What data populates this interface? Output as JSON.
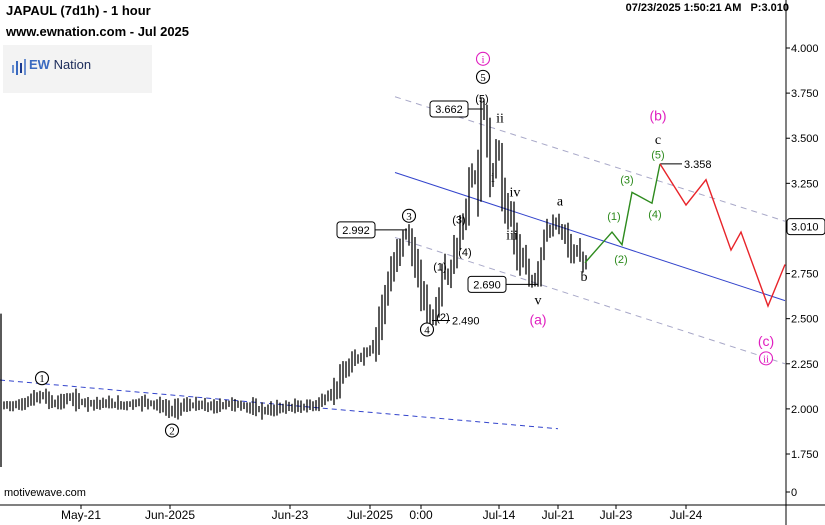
{
  "header": {
    "symbol": "JAPAUL (7d1h) - 1 hour",
    "website": "www.ewnation.com  - Jul 2025",
    "timestamp": "07/23/2025 1:50:21 AM",
    "price_readout": "P:3.010"
  },
  "logo": {
    "prefix": "EW",
    "suffix": " Nation"
  },
  "footer": {
    "credit": "motivewave.com"
  },
  "colors": {
    "candles": "#000000",
    "trend_line": "#3344cc",
    "channel": "#a8a8c8",
    "projection_up": "#2e8b1e",
    "projection_down": "#e8242a",
    "magenta": "#e020c0",
    "price_box": "#000000"
  },
  "chart_data": {
    "type": "bar",
    "title": "JAPAUL (7d1h) - 1 hour",
    "y_axis": {
      "ylim": [
        0,
        4.05
      ],
      "ticks": [
        "4.000",
        "3.750",
        "3.500",
        "3.250",
        "3.000",
        "2.750",
        "2.500",
        "2.250",
        "2.000",
        "1.750",
        "0"
      ],
      "current_price": "3.010"
    },
    "x_axis": {
      "labels": [
        "May-21",
        "Jun-2025",
        "Jun-23",
        "Jul-2025",
        "0:00",
        "Jul-14",
        "Jul-21",
        "Jul-23",
        "Jul-24"
      ]
    },
    "price_path": [
      [
        0,
        2.02
      ],
      [
        20,
        2.02
      ],
      [
        35,
        2.06
      ],
      [
        45,
        2.07
      ],
      [
        55,
        2.03
      ],
      [
        70,
        2.06
      ],
      [
        80,
        2.04
      ],
      [
        95,
        2.03
      ],
      [
        110,
        2.03
      ],
      [
        125,
        2.02
      ],
      [
        145,
        2.04
      ],
      [
        160,
        2.02
      ],
      [
        172,
        1.99
      ],
      [
        185,
        2.02
      ],
      [
        200,
        2.02
      ],
      [
        215,
        2.01
      ],
      [
        230,
        2.03
      ],
      [
        250,
        2.01
      ],
      [
        265,
        1.99
      ],
      [
        285,
        2.01
      ],
      [
        300,
        2.01
      ],
      [
        315,
        2.02
      ],
      [
        325,
        2.05
      ],
      [
        335,
        2.1
      ],
      [
        345,
        2.2
      ],
      [
        355,
        2.27
      ],
      [
        365,
        2.3
      ],
      [
        375,
        2.35
      ],
      [
        385,
        2.6
      ],
      [
        395,
        2.8
      ],
      [
        407,
        2.992
      ],
      [
        412,
        2.9
      ],
      [
        418,
        2.75
      ],
      [
        423,
        2.65
      ],
      [
        428,
        2.55
      ],
      [
        432,
        2.49
      ],
      [
        436,
        2.55
      ],
      [
        440,
        2.6
      ],
      [
        445,
        2.78
      ],
      [
        450,
        2.72
      ],
      [
        455,
        2.85
      ],
      [
        460,
        2.95
      ],
      [
        467,
        3.1
      ],
      [
        472,
        3.3
      ],
      [
        478,
        3.25
      ],
      [
        483,
        3.662
      ],
      [
        486,
        3.6
      ],
      [
        489,
        3.45
      ],
      [
        493,
        3.28
      ],
      [
        497,
        3.4
      ],
      [
        500,
        3.45
      ],
      [
        504,
        3.2
      ],
      [
        508,
        3.1
      ],
      [
        512,
        3.08
      ],
      [
        516,
        2.95
      ],
      [
        520,
        2.85
      ],
      [
        526,
        2.8
      ],
      [
        533,
        2.69
      ],
      [
        540,
        2.78
      ],
      [
        546,
        2.98
      ],
      [
        552,
        3.0
      ],
      [
        558,
        3.03
      ],
      [
        563,
        2.97
      ],
      [
        568,
        2.94
      ],
      [
        573,
        2.85
      ],
      [
        578,
        2.88
      ],
      [
        583,
        2.82
      ],
      [
        588,
        2.8
      ]
    ],
    "price_labels": [
      {
        "text": "3.662",
        "value": 3.662
      },
      {
        "text": "2.992",
        "value": 2.992
      },
      {
        "text": "2.690",
        "value": 2.69
      },
      {
        "text": "2.490",
        "value": 2.49
      },
      {
        "text": "3.358",
        "value": 3.358
      }
    ],
    "trend_lines": [
      {
        "name": "wave-2-trendline",
        "style": "dashed",
        "from": [
          0,
          2.16
        ],
        "to": [
          558,
          1.89
        ]
      },
      {
        "name": "channel-midline",
        "style": "solid",
        "from": [
          395,
          3.31
        ],
        "to": [
          785,
          2.6
        ]
      },
      {
        "name": "channel-upper",
        "style": "dashed",
        "from": [
          395,
          3.73
        ],
        "to": [
          785,
          3.04
        ]
      },
      {
        "name": "channel-lower",
        "style": "dashed",
        "from": [
          395,
          2.95
        ],
        "to": [
          785,
          2.25
        ]
      }
    ],
    "projection_up": [
      [
        585,
        2.81
      ],
      [
        612,
        2.98
      ],
      [
        622,
        2.91
      ],
      [
        632,
        3.2
      ],
      [
        652,
        3.14
      ],
      [
        660,
        3.358
      ]
    ],
    "projection_down": [
      [
        660,
        3.358
      ],
      [
        686,
        3.13
      ],
      [
        706,
        3.27
      ],
      [
        731,
        2.88
      ],
      [
        741,
        2.98
      ],
      [
        768,
        2.57
      ],
      [
        785,
        2.8
      ]
    ],
    "wave_labels": [
      {
        "text": "1",
        "style": "circled",
        "color": "black",
        "at": [
          42,
          2.17
        ]
      },
      {
        "text": "2",
        "style": "circled",
        "color": "black",
        "at": [
          172,
          1.88
        ]
      },
      {
        "text": "3",
        "style": "circled",
        "color": "black",
        "at": [
          409,
          3.07
        ]
      },
      {
        "text": "4",
        "style": "circled",
        "color": "black",
        "at": [
          427,
          2.44
        ]
      },
      {
        "text": "5",
        "style": "circled",
        "color": "black",
        "at": [
          483,
          3.84
        ]
      },
      {
        "text": "i",
        "style": "circled",
        "color": "magenta",
        "at": [
          483,
          3.94
        ]
      },
      {
        "text": "(5)",
        "style": "plain",
        "color": "black",
        "at": [
          482,
          3.72
        ]
      },
      {
        "text": "(1)",
        "style": "plain",
        "color": "black",
        "at": [
          440,
          2.79
        ]
      },
      {
        "text": "(2)",
        "style": "plain",
        "color": "black",
        "at": [
          443,
          2.51
        ]
      },
      {
        "text": "(3)",
        "style": "plain",
        "color": "black",
        "at": [
          459,
          3.05
        ]
      },
      {
        "text": "(4)",
        "style": "plain",
        "color": "black",
        "at": [
          465,
          2.87
        ]
      },
      {
        "text": "ii",
        "style": "plain",
        "color": "black",
        "at": [
          500,
          3.61
        ]
      },
      {
        "text": "i",
        "style": "plain",
        "color": "black",
        "at": [
          493,
          3.28
        ]
      },
      {
        "text": "iv",
        "style": "plain",
        "color": "black",
        "at": [
          515,
          3.2
        ]
      },
      {
        "text": "iii",
        "style": "plain",
        "color": "black",
        "at": [
          512,
          2.96
        ]
      },
      {
        "text": "v",
        "style": "plain",
        "color": "black",
        "at": [
          538,
          2.6
        ]
      },
      {
        "text": "a",
        "style": "plain",
        "color": "black",
        "at": [
          560,
          3.15
        ]
      },
      {
        "text": "b",
        "style": "plain",
        "color": "black",
        "at": [
          584,
          2.73
        ]
      },
      {
        "text": "c",
        "style": "plain",
        "color": "black",
        "at": [
          658,
          3.49
        ]
      },
      {
        "text": "(a)",
        "style": "plain",
        "color": "magenta",
        "at": [
          538,
          2.49
        ]
      },
      {
        "text": "(b)",
        "style": "plain",
        "color": "magenta",
        "at": [
          658,
          3.62
        ]
      },
      {
        "text": "(c)",
        "style": "plain",
        "color": "magenta",
        "at": [
          766,
          2.37
        ]
      },
      {
        "text": "ii",
        "style": "circled",
        "color": "magenta",
        "at": [
          766,
          2.28
        ]
      },
      {
        "text": "(1)",
        "style": "plain",
        "color": "green",
        "at": [
          614,
          3.07
        ]
      },
      {
        "text": "(2)",
        "style": "plain",
        "color": "green",
        "at": [
          621,
          2.83
        ]
      },
      {
        "text": "(3)",
        "style": "plain",
        "color": "green",
        "at": [
          627,
          3.27
        ]
      },
      {
        "text": "(4)",
        "style": "plain",
        "color": "green",
        "at": [
          655,
          3.08
        ]
      },
      {
        "text": "(5)",
        "style": "plain",
        "color": "green",
        "at": [
          658,
          3.41
        ]
      }
    ]
  }
}
